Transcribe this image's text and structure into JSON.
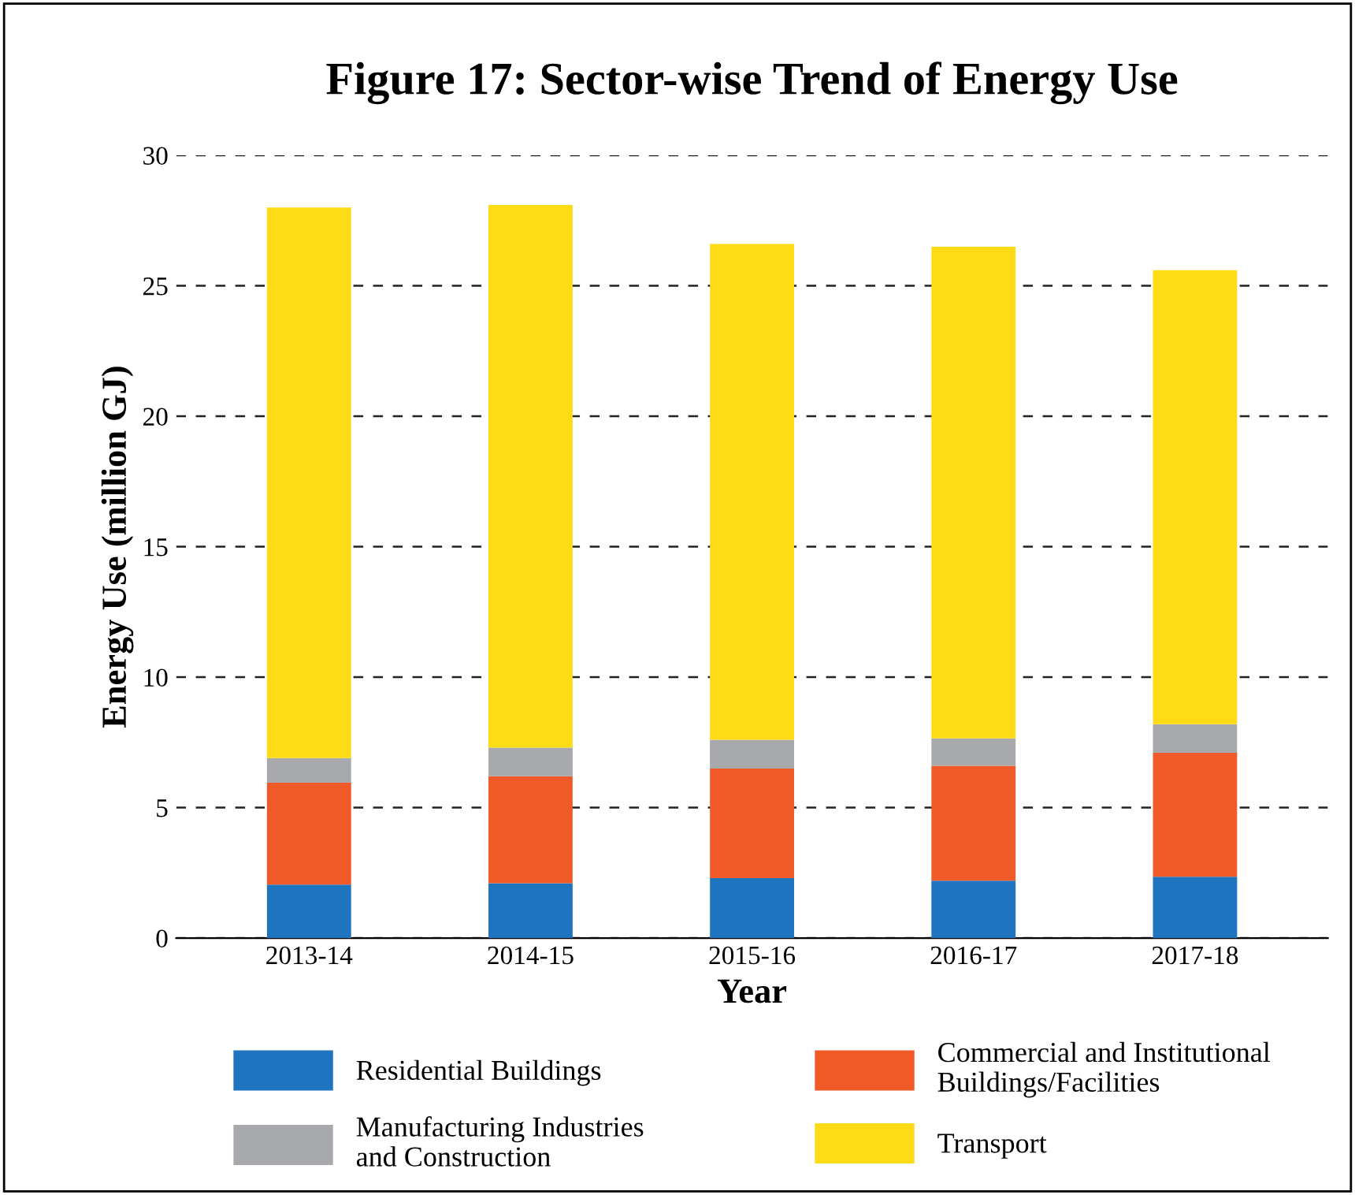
{
  "chart_data": {
    "type": "bar",
    "title": "Figure 17: Sector-wise Trend of Energy Use",
    "xlabel": "Year",
    "ylabel": "Energy Use (million GJ)",
    "categories": [
      "2013-14",
      "2014-15",
      "2015-16",
      "2016-17",
      "2017-18"
    ],
    "stacked": true,
    "series": [
      {
        "name": "Residential Buildings",
        "color": "#1f74c0",
        "values": [
          2.05,
          2.1,
          2.3,
          2.2,
          2.35
        ]
      },
      {
        "name": "Commercial and Institutional\nBuildings/Facilities",
        "color": "#f05a28",
        "values": [
          3.9,
          4.1,
          4.2,
          4.4,
          4.75
        ]
      },
      {
        "name": "Manufacturing Industries\nand Construction",
        "color": "#a7a9ac",
        "values": [
          0.95,
          1.1,
          1.1,
          1.05,
          1.1
        ]
      },
      {
        "name": "Transport",
        "color": "#fedb17",
        "values": [
          21.1,
          20.8,
          19.0,
          18.85,
          17.4
        ]
      }
    ],
    "ylim": [
      0,
      30
    ],
    "yticks": [
      0,
      5,
      10,
      15,
      20,
      25,
      30
    ],
    "grid": "y",
    "legend": "bottom"
  }
}
